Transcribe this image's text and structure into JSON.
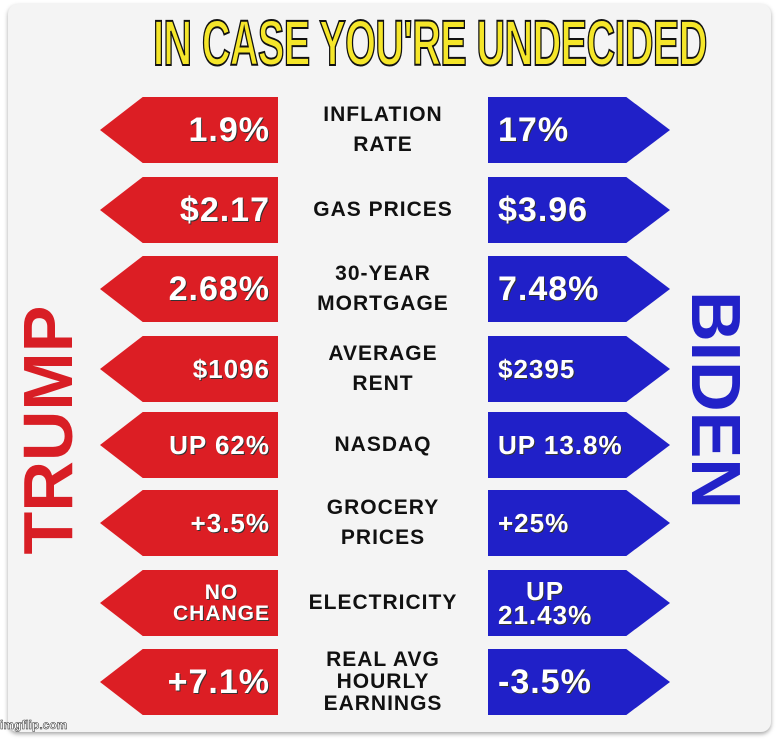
{
  "title": "IN CASE YOU'RE UNDECIDED",
  "left_label": "TRUMP",
  "right_label": "BIDEN",
  "rows": [
    {
      "metric": "INFLATION\nRATE",
      "trump": "1.9%",
      "biden": "17%"
    },
    {
      "metric": "GAS PRICES",
      "trump": "$2.17",
      "biden": "$3.96"
    },
    {
      "metric": "30-YEAR\nMORTGAGE",
      "trump": "2.68%",
      "biden": "7.48%"
    },
    {
      "metric": "AVERAGE\nRENT",
      "trump": "$1096",
      "biden": "$2395"
    },
    {
      "metric": "NASDAQ",
      "trump": "UP 62%",
      "biden": "UP 13.8%"
    },
    {
      "metric": "GROCERY\nPRICES",
      "trump": "+3.5%",
      "biden": "+25%"
    },
    {
      "metric": "ELECTRICITY",
      "trump": "NO\nCHANGE",
      "biden": "UP\n21.43%"
    },
    {
      "metric": "REAL AVG\nHOURLY\nEARNINGS",
      "trump": "+7.1%",
      "biden": "-3.5%"
    }
  ],
  "watermark": "imgflip.com",
  "colors": {
    "trump_red": "#dc1e24",
    "biden_blue": "#2020c8",
    "title_yellow": "#f5e62a"
  }
}
